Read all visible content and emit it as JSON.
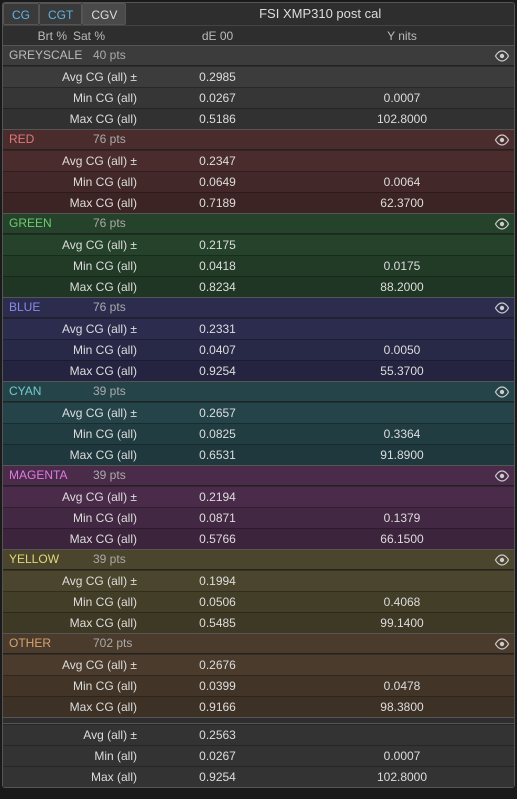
{
  "title": "FSI XMP310 post cal",
  "tabs": [
    {
      "label": "CG",
      "active": false,
      "blue": true
    },
    {
      "label": "CGT",
      "active": false,
      "blue": true
    },
    {
      "label": "CGV",
      "active": true,
      "blue": false
    }
  ],
  "col_headers": {
    "brt": "Brt %",
    "sat": "Sat %",
    "de": "dE 00",
    "y": "Y nits"
  },
  "row_labels": {
    "avg": "Avg CG (all) ±",
    "min": "Min CG (all)",
    "max": "Max CG (all)"
  },
  "summary_labels": {
    "avg": "Avg (all) ±",
    "min": "Min (all)",
    "max": "Max (all)"
  },
  "pts_suffix": " pts",
  "sections": [
    {
      "name": "GREYSCALE",
      "pts": "40",
      "bg": "#3c3c3c",
      "label_color": "#bbbbbb",
      "avg_de": "0.2985",
      "avg_y": "",
      "min_de": "0.0267",
      "min_y": "0.0007",
      "max_de": "0.5186",
      "max_y": "102.8000"
    },
    {
      "name": "RED",
      "pts": "76",
      "bg": "#4a2c2c",
      "label_color": "#e07a7a",
      "avg_de": "0.2347",
      "avg_y": "",
      "min_de": "0.0649",
      "min_y": "0.0064",
      "max_de": "0.7189",
      "max_y": "62.3700"
    },
    {
      "name": "GREEN",
      "pts": "76",
      "bg": "#25422b",
      "label_color": "#6ecc6e",
      "avg_de": "0.2175",
      "avg_y": "",
      "min_de": "0.0418",
      "min_y": "0.0175",
      "max_de": "0.8234",
      "max_y": "88.2000"
    },
    {
      "name": "BLUE",
      "pts": "76",
      "bg": "#2c2c4f",
      "label_color": "#8a8ae8",
      "avg_de": "0.2331",
      "avg_y": "",
      "min_de": "0.0407",
      "min_y": "0.0050",
      "max_de": "0.9254",
      "max_y": "55.3700"
    },
    {
      "name": "CYAN",
      "pts": "39",
      "bg": "#25444a",
      "label_color": "#6ecccc",
      "avg_de": "0.2657",
      "avg_y": "",
      "min_de": "0.0825",
      "min_y": "0.3364",
      "max_de": "0.6531",
      "max_y": "91.8900"
    },
    {
      "name": "MAGENTA",
      "pts": "39",
      "bg": "#4a2c4a",
      "label_color": "#e07ae0",
      "avg_de": "0.2194",
      "avg_y": "",
      "min_de": "0.0871",
      "min_y": "0.1379",
      "max_de": "0.5766",
      "max_y": "66.1500"
    },
    {
      "name": "YELLOW",
      "pts": "39",
      "bg": "#4a452c",
      "label_color": "#e0d87a",
      "avg_de": "0.1994",
      "avg_y": "",
      "min_de": "0.0506",
      "min_y": "0.4068",
      "max_de": "0.5485",
      "max_y": "99.1400"
    },
    {
      "name": "OTHER",
      "pts": "702",
      "bg": "#4a3b2c",
      "label_color": "#d8a46e",
      "avg_de": "0.2676",
      "avg_y": "",
      "min_de": "0.0399",
      "min_y": "0.0478",
      "max_de": "0.9166",
      "max_y": "98.3800"
    }
  ],
  "summary": {
    "avg_de": "0.2563",
    "avg_y": "",
    "min_de": "0.0267",
    "min_y": "0.0007",
    "max_de": "0.9254",
    "max_y": "102.8000"
  },
  "row_shades": {
    "avg_alpha": "0.00",
    "min_alpha": "0.10",
    "max_alpha": "0.18"
  }
}
